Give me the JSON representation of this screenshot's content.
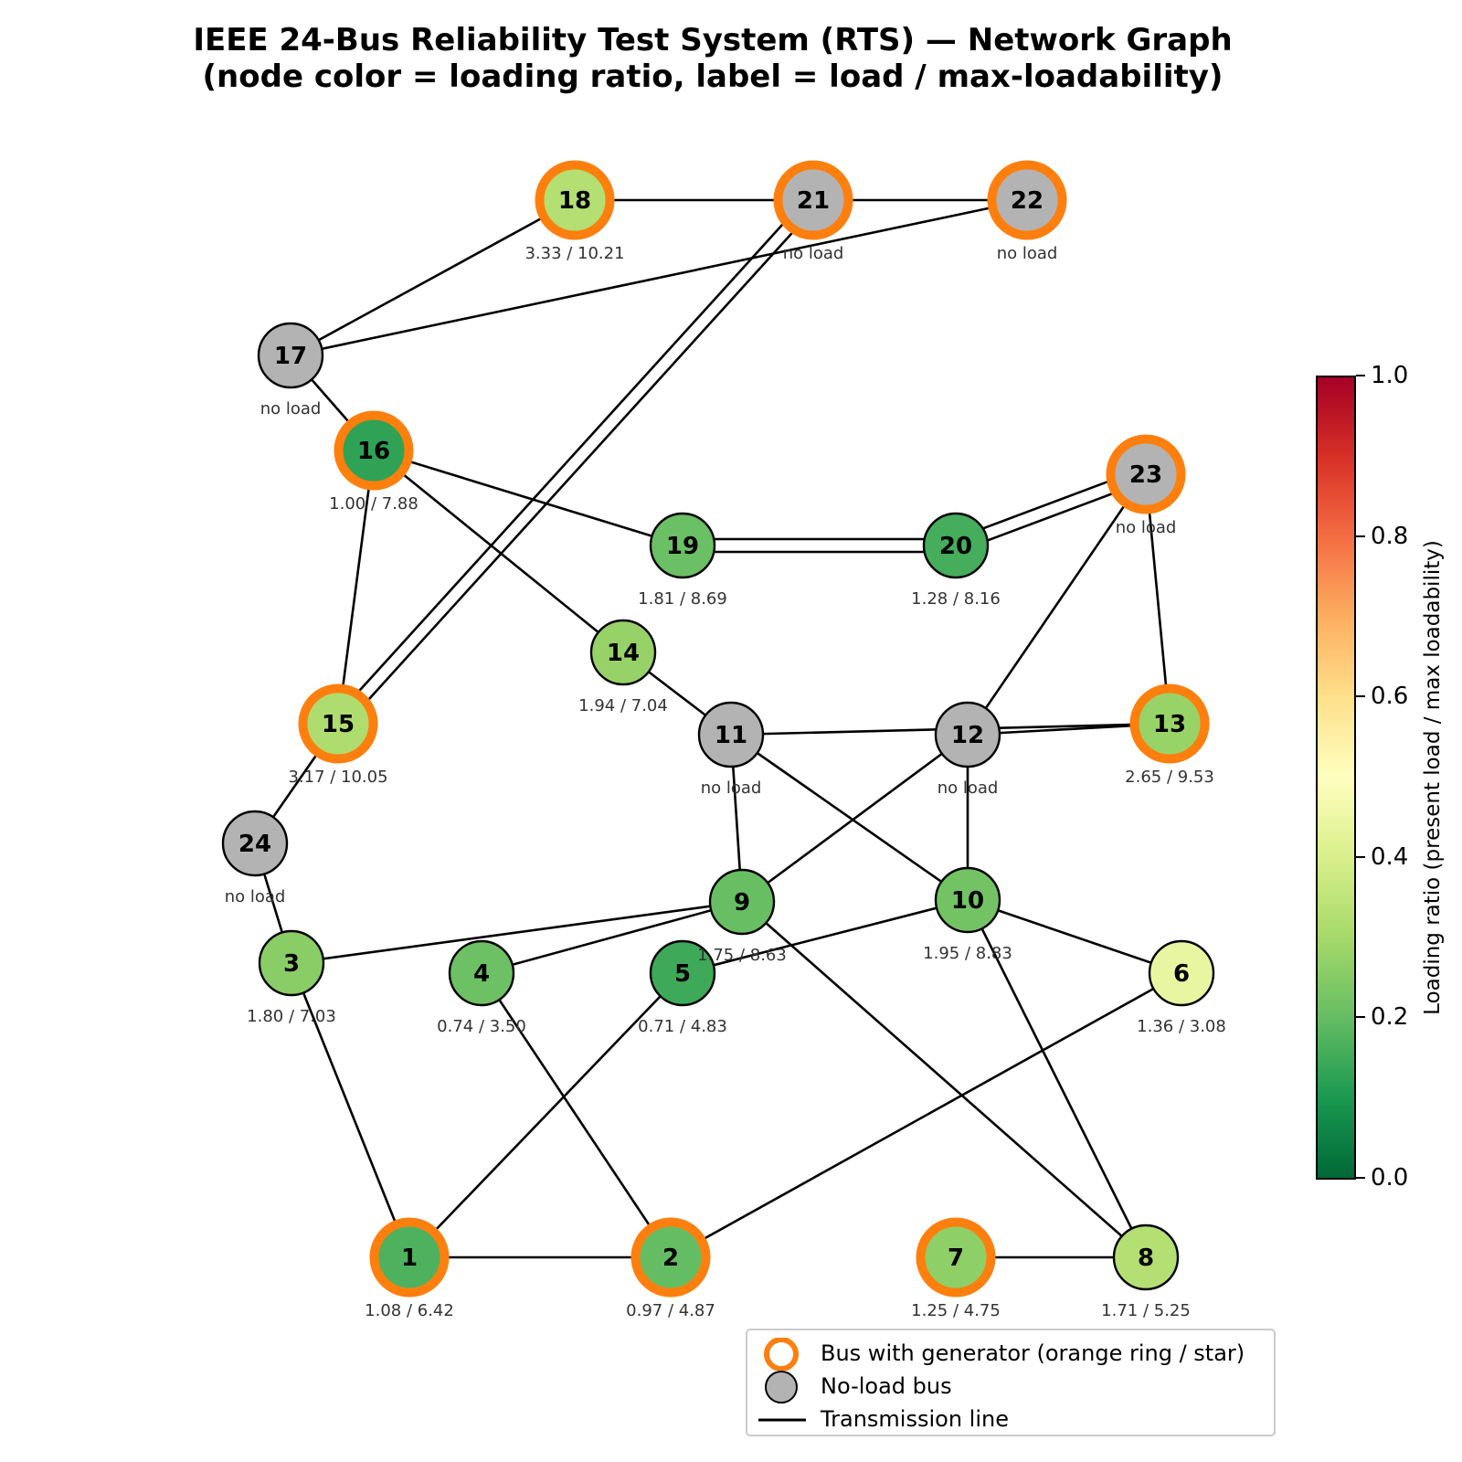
{
  "title": {
    "line1": "IEEE 24-Bus Reliability Test System (RTS) — Network Graph",
    "line2": "(node color = loading ratio, label = load / max-loadability)"
  },
  "buses": [
    {
      "id": "1",
      "label": "1.08 / 6.42",
      "ratio": 0.168,
      "generator": true,
      "no_load": false
    },
    {
      "id": "2",
      "label": "0.97 / 4.87",
      "ratio": 0.199,
      "generator": true,
      "no_load": false
    },
    {
      "id": "3",
      "label": "1.80 / 7.03",
      "ratio": 0.256,
      "generator": false,
      "no_load": false
    },
    {
      "id": "4",
      "label": "0.74 / 3.50",
      "ratio": 0.211,
      "generator": false,
      "no_load": false
    },
    {
      "id": "5",
      "label": "0.71 / 4.83",
      "ratio": 0.147,
      "generator": false,
      "no_load": false
    },
    {
      "id": "6",
      "label": "1.36 / 3.08",
      "ratio": 0.442,
      "generator": false,
      "no_load": false
    },
    {
      "id": "7",
      "label": "1.25 / 4.75",
      "ratio": 0.263,
      "generator": true,
      "no_load": false
    },
    {
      "id": "8",
      "label": "1.71 / 5.25",
      "ratio": 0.326,
      "generator": false,
      "no_load": false
    },
    {
      "id": "9",
      "label": "1.75 / 8.63",
      "ratio": 0.203,
      "generator": false,
      "no_load": false
    },
    {
      "id": "10",
      "label": "1.95 / 8.83",
      "ratio": 0.221,
      "generator": false,
      "no_load": false
    },
    {
      "id": "11",
      "label": "no load",
      "ratio": null,
      "generator": false,
      "no_load": true
    },
    {
      "id": "12",
      "label": "no load",
      "ratio": null,
      "generator": false,
      "no_load": true
    },
    {
      "id": "13",
      "label": "2.65 / 9.53",
      "ratio": 0.278,
      "generator": true,
      "no_load": false
    },
    {
      "id": "14",
      "label": "1.94 / 7.04",
      "ratio": 0.276,
      "generator": false,
      "no_load": false
    },
    {
      "id": "15",
      "label": "3.17 / 10.05",
      "ratio": 0.315,
      "generator": true,
      "no_load": false
    },
    {
      "id": "16",
      "label": "1.00 / 7.88",
      "ratio": 0.127,
      "generator": true,
      "no_load": false
    },
    {
      "id": "17",
      "label": "no load",
      "ratio": null,
      "generator": false,
      "no_load": true
    },
    {
      "id": "18",
      "label": "3.33 / 10.21",
      "ratio": 0.326,
      "generator": true,
      "no_load": false
    },
    {
      "id": "19",
      "label": "1.81 / 8.69",
      "ratio": 0.208,
      "generator": false,
      "no_load": false
    },
    {
      "id": "20",
      "label": "1.28 / 8.16",
      "ratio": 0.157,
      "generator": false,
      "no_load": false
    },
    {
      "id": "21",
      "label": "no load",
      "ratio": null,
      "generator": true,
      "no_load": true
    },
    {
      "id": "22",
      "label": "no load",
      "ratio": null,
      "generator": true,
      "no_load": true
    },
    {
      "id": "23",
      "label": "no load",
      "ratio": null,
      "generator": true,
      "no_load": true
    },
    {
      "id": "24",
      "label": "no load",
      "ratio": null,
      "generator": false,
      "no_load": true
    }
  ],
  "lines": [
    [
      "1",
      "2"
    ],
    [
      "1",
      "3"
    ],
    [
      "1",
      "5"
    ],
    [
      "2",
      "4"
    ],
    [
      "2",
      "6"
    ],
    [
      "3",
      "9"
    ],
    [
      "3",
      "24"
    ],
    [
      "4",
      "9"
    ],
    [
      "5",
      "10"
    ],
    [
      "6",
      "10"
    ],
    [
      "7",
      "8"
    ],
    [
      "8",
      "9"
    ],
    [
      "8",
      "10"
    ],
    [
      "9",
      "11"
    ],
    [
      "9",
      "12"
    ],
    [
      "10",
      "11"
    ],
    [
      "10",
      "12"
    ],
    [
      "11",
      "13"
    ],
    [
      "11",
      "14"
    ],
    [
      "12",
      "13"
    ],
    [
      "12",
      "23"
    ],
    [
      "13",
      "23"
    ],
    [
      "14",
      "16"
    ],
    [
      "15",
      "16"
    ],
    [
      "15",
      "21"
    ],
    [
      "15",
      "21"
    ],
    [
      "15",
      "24"
    ],
    [
      "16",
      "17"
    ],
    [
      "16",
      "19"
    ],
    [
      "17",
      "18"
    ],
    [
      "17",
      "22"
    ],
    [
      "18",
      "21"
    ],
    [
      "19",
      "20"
    ],
    [
      "19",
      "20"
    ],
    [
      "20",
      "23"
    ],
    [
      "20",
      "23"
    ],
    [
      "21",
      "22"
    ]
  ],
  "colorbar": {
    "label": "Loading ratio  (present load / max loadability)",
    "min": 0.0,
    "max": 1.0,
    "colormap": "RdYlGn_r",
    "ticks": [
      "0.0",
      "0.2",
      "0.4",
      "0.6",
      "0.8",
      "1.0"
    ]
  },
  "legend": {
    "generator": "Bus with generator (orange ring / star)",
    "no_load": "No-load bus",
    "line": "Transmission line"
  },
  "colors": {
    "generator_ring": "#ff7f0e",
    "no_load_fill": "#b3b3b3",
    "line": "#000000",
    "colormap_stops": [
      "#006837",
      "#1a9850",
      "#66bd63",
      "#a6d96a",
      "#d9ef8b",
      "#ffffbf",
      "#fee08b",
      "#fdae61",
      "#f46d43",
      "#d73027",
      "#a50026"
    ]
  }
}
